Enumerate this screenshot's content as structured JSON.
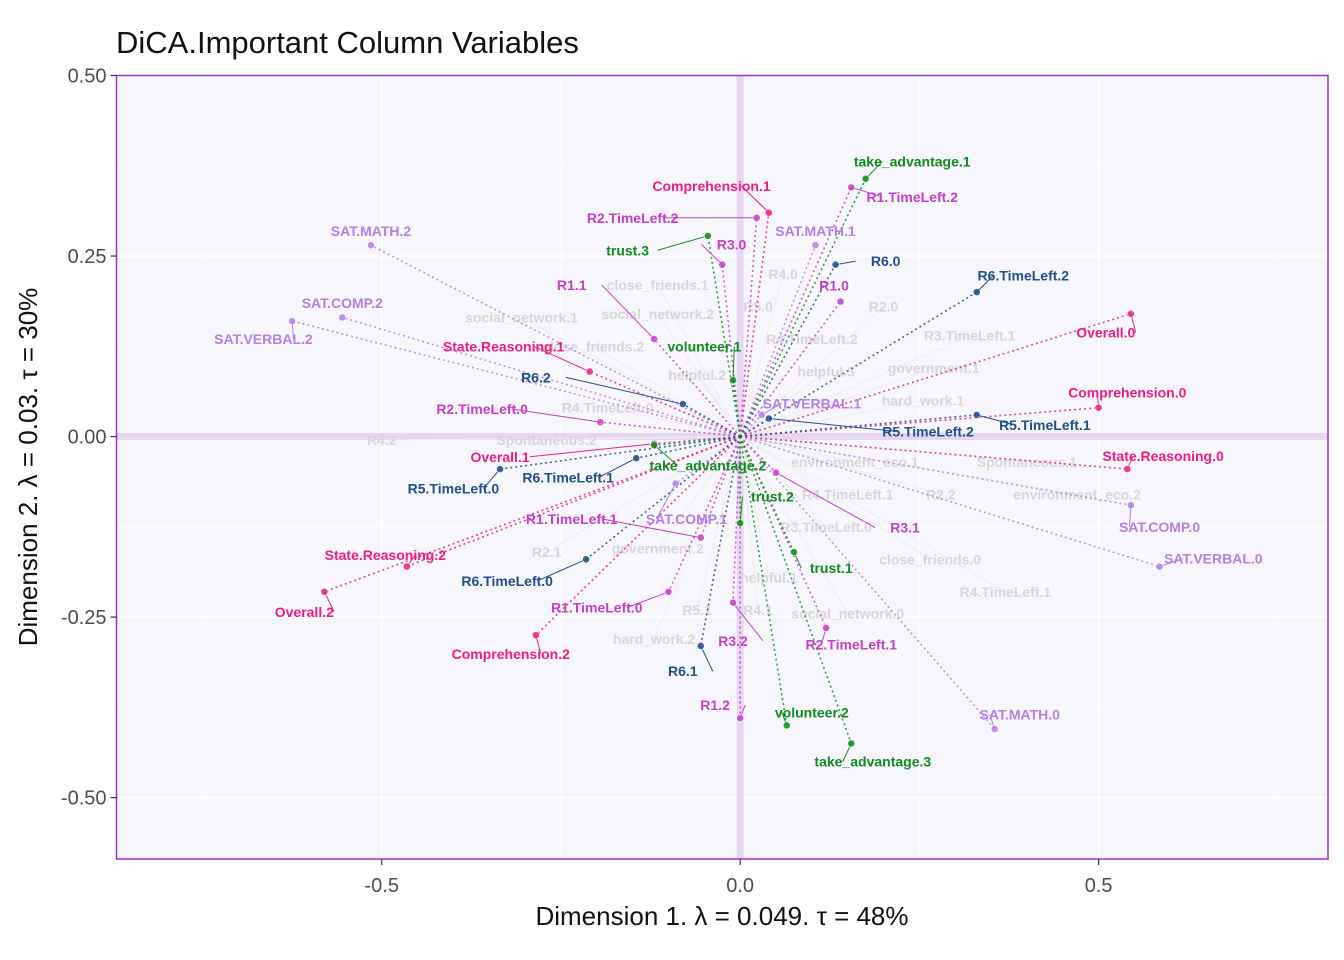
{
  "chart_data": {
    "type": "scatter",
    "title": "DiCA.Important Column Variables",
    "xlabel": "Dimension 1.   λ = 0.049.  τ = 48%",
    "ylabel": "Dimension 2.   λ = 0.03.  τ = 30%",
    "xlim": [
      -0.87,
      0.82
    ],
    "ylim": [
      -0.585,
      0.5
    ],
    "x_ticks": [
      -0.5,
      0.0,
      0.5
    ],
    "y_ticks": [
      0.5,
      0.25,
      0.0,
      -0.25,
      -0.5
    ],
    "x_tick_labels": [
      "-0.5",
      "0.0",
      "0.5"
    ],
    "y_tick_labels": [
      "0.50",
      "0.25",
      "0.00",
      "-0.25",
      "-0.50"
    ],
    "grid": true,
    "colors": {
      "panel_bg": "#f8f6fd",
      "panel_border": "#9932cc",
      "origin_lines": "#e6d6f2",
      "sat": "#b47fe7",
      "comprehension": "#ef1d82",
      "reasoning_time": "#c33fc8",
      "r6": "#1f4e89",
      "trust": "#0f8d1c",
      "grey": "#d6d6d6"
    },
    "groups": [
      {
        "name": "SAT",
        "color": "#b47fe7",
        "points": [
          {
            "label": "SAT.MATH.2",
            "x": -0.515,
            "y": 0.265,
            "lx": -0.515,
            "ly": 0.285
          },
          {
            "label": "SAT.COMP.2",
            "x": -0.555,
            "y": 0.165,
            "lx": -0.555,
            "ly": 0.185
          },
          {
            "label": "SAT.VERBAL.2",
            "x": -0.625,
            "y": 0.16,
            "lx": -0.665,
            "ly": 0.135
          },
          {
            "label": "SAT.MATH.1",
            "x": 0.105,
            "y": 0.265,
            "lx": 0.105,
            "ly": 0.285
          },
          {
            "label": "SAT.VERBAL.1",
            "x": 0.03,
            "y": 0.03,
            "lx": 0.1,
            "ly": 0.046
          },
          {
            "label": "SAT.COMP.1",
            "x": -0.09,
            "y": -0.065,
            "lx": -0.075,
            "ly": -0.114
          },
          {
            "label": "SAT.COMP.0",
            "x": 0.545,
            "y": -0.095,
            "lx": 0.585,
            "ly": -0.125
          },
          {
            "label": "SAT.VERBAL.0",
            "x": 0.585,
            "y": -0.18,
            "lx": 0.66,
            "ly": -0.169
          },
          {
            "label": "SAT.MATH.0",
            "x": 0.355,
            "y": -0.405,
            "lx": 0.39,
            "ly": -0.385
          }
        ]
      },
      {
        "name": "Comprehension",
        "color": "#ef1d82",
        "points": [
          {
            "label": "Comprehension.1",
            "x": 0.04,
            "y": 0.31,
            "lx": -0.04,
            "ly": 0.347
          },
          {
            "label": "Overall.0",
            "x": 0.545,
            "y": 0.17,
            "lx": 0.51,
            "ly": 0.144
          },
          {
            "label": "State.Reasoning.1",
            "x": -0.21,
            "y": 0.09,
            "lx": -0.33,
            "ly": 0.125
          },
          {
            "label": "Comprehension.0",
            "x": 0.5,
            "y": 0.04,
            "lx": 0.54,
            "ly": 0.061
          },
          {
            "label": "State.Reasoning.0",
            "x": 0.54,
            "y": -0.045,
            "lx": 0.59,
            "ly": -0.027
          },
          {
            "label": "Overall.1",
            "x": -0.12,
            "y": -0.01,
            "lx": -0.335,
            "ly": -0.028
          },
          {
            "label": "State.Reasoning.2",
            "x": -0.465,
            "y": -0.18,
            "lx": -0.495,
            "ly": -0.164
          },
          {
            "label": "Overall.2",
            "x": -0.58,
            "y": -0.215,
            "lx": -0.608,
            "ly": -0.243
          },
          {
            "label": "Comprehension.2",
            "x": -0.285,
            "y": -0.275,
            "lx": -0.32,
            "ly": -0.301
          }
        ]
      },
      {
        "name": "Reasoning time",
        "color": "#c33fc8",
        "points": [
          {
            "label": "R1.TimeLeft.2",
            "x": 0.155,
            "y": 0.345,
            "lx": 0.24,
            "ly": 0.332
          },
          {
            "label": "R2.TimeLeft.2",
            "x": 0.023,
            "y": 0.303,
            "lx": -0.15,
            "ly": 0.303
          },
          {
            "label": "R3.0",
            "x": -0.025,
            "y": 0.238,
            "lx": -0.012,
            "ly": 0.266
          },
          {
            "label": "R1.0",
            "x": 0.14,
            "y": 0.187,
            "lx": 0.131,
            "ly": 0.209
          },
          {
            "label": "R1.1",
            "x": -0.12,
            "y": 0.135,
            "lx": -0.235,
            "ly": 0.21
          },
          {
            "label": "R2.TimeLeft.0",
            "x": -0.195,
            "y": 0.02,
            "lx": -0.36,
            "ly": 0.038
          },
          {
            "label": "R3.1",
            "x": 0.05,
            "y": -0.05,
            "lx": 0.23,
            "ly": -0.126
          },
          {
            "label": "R1.TimeLeft.1",
            "x": -0.055,
            "y": -0.14,
            "lx": -0.235,
            "ly": -0.114
          },
          {
            "label": "R1.TimeLeft.0",
            "x": -0.1,
            "y": -0.215,
            "lx": -0.2,
            "ly": -0.237
          },
          {
            "label": "R3.2",
            "x": -0.01,
            "y": -0.23,
            "lx": -0.01,
            "ly": -0.283
          },
          {
            "label": "R2.TimeLeft.1",
            "x": 0.12,
            "y": -0.265,
            "lx": 0.155,
            "ly": -0.288
          },
          {
            "label": "R1.2",
            "x": 0,
            "y": -0.39,
            "lx": -0.035,
            "ly": -0.372
          }
        ]
      },
      {
        "name": "R6",
        "color": "#1f4e89",
        "points": [
          {
            "label": "R6.0",
            "x": 0.133,
            "y": 0.238,
            "lx": 0.203,
            "ly": 0.243
          },
          {
            "label": "R6.TimeLeft.2",
            "x": 0.33,
            "y": 0.2,
            "lx": 0.395,
            "ly": 0.223
          },
          {
            "label": "R6.2",
            "x": -0.08,
            "y": 0.045,
            "lx": -0.285,
            "ly": 0.082
          },
          {
            "label": "R5.TimeLeft.1",
            "x": 0.33,
            "y": 0.03,
            "lx": 0.425,
            "ly": 0.016
          },
          {
            "label": "R5.TimeLeft.2",
            "x": 0.04,
            "y": 0.025,
            "lx": 0.262,
            "ly": 0.007
          },
          {
            "label": "R6.TimeLeft.1",
            "x": -0.145,
            "y": -0.03,
            "lx": -0.24,
            "ly": -0.057
          },
          {
            "label": "R5.TimeLeft.0",
            "x": -0.335,
            "y": -0.045,
            "lx": -0.4,
            "ly": -0.072
          },
          {
            "label": "R6.TimeLeft.0",
            "x": -0.215,
            "y": -0.17,
            "lx": -0.325,
            "ly": -0.2
          },
          {
            "label": "R6.1",
            "x": -0.055,
            "y": -0.29,
            "lx": -0.08,
            "ly": -0.325
          }
        ]
      },
      {
        "name": "Trust",
        "color": "#0f8d1c",
        "points": [
          {
            "label": "take_advantage.1",
            "x": 0.175,
            "y": 0.357,
            "lx": 0.24,
            "ly": 0.381
          },
          {
            "label": "trust.3",
            "x": -0.045,
            "y": 0.278,
            "lx": -0.157,
            "ly": 0.258
          },
          {
            "label": "volunteer.1",
            "x": -0.01,
            "y": 0.078,
            "lx": -0.05,
            "ly": 0.125
          },
          {
            "label": "take_advantage.2",
            "x": -0.12,
            "y": -0.012,
            "lx": -0.045,
            "ly": -0.04
          },
          {
            "label": "trust.2",
            "x": 0,
            "y": -0.12,
            "lx": 0.045,
            "ly": -0.083
          },
          {
            "label": "trust.1",
            "x": 0.075,
            "y": -0.16,
            "lx": 0.127,
            "ly": -0.182
          },
          {
            "label": "volunteer.2",
            "x": 0.065,
            "y": -0.4,
            "lx": 0.1,
            "ly": -0.382
          },
          {
            "label": "take_advantage.3",
            "x": 0.155,
            "y": -0.425,
            "lx": 0.185,
            "ly": -0.45
          }
        ]
      }
    ],
    "background_labels": [
      {
        "label": "close_friends.1",
        "x": -0.115,
        "y": 0.21
      },
      {
        "label": "social_network.2",
        "x": -0.115,
        "y": 0.17
      },
      {
        "label": "social_network.1",
        "x": -0.305,
        "y": 0.165
      },
      {
        "label": "close_friends.2",
        "x": -0.205,
        "y": 0.125
      },
      {
        "label": "helpful.2",
        "x": -0.06,
        "y": 0.085
      },
      {
        "label": "R4.TimeLeft.0",
        "x": -0.185,
        "y": 0.04
      },
      {
        "label": "R4.2",
        "x": -0.5,
        "y": -0.005
      },
      {
        "label": "Spontaneous.2",
        "x": -0.27,
        "y": -0.005
      },
      {
        "label": "R4.0",
        "x": 0.06,
        "y": 0.225
      },
      {
        "label": "R5.0",
        "x": 0.025,
        "y": 0.18
      },
      {
        "label": "R2.0",
        "x": 0.2,
        "y": 0.18
      },
      {
        "label": "R4.TimeLeft.2",
        "x": 0.1,
        "y": 0.135
      },
      {
        "label": "R3.TimeLeft.1",
        "x": 0.32,
        "y": 0.14
      },
      {
        "label": "government.1",
        "x": 0.27,
        "y": 0.095
      },
      {
        "label": "helpful.3",
        "x": 0.12,
        "y": 0.09
      },
      {
        "label": "hard_work.1",
        "x": 0.255,
        "y": 0.05
      },
      {
        "label": "environment_eco.1",
        "x": 0.16,
        "y": -0.035
      },
      {
        "label": "Spontaneous.1",
        "x": 0.4,
        "y": -0.035
      },
      {
        "label": "R4.TimeLeft.1",
        "x": 0.15,
        "y": -0.08
      },
      {
        "label": "R2.2",
        "x": 0.28,
        "y": -0.08
      },
      {
        "label": "environment_eco.2",
        "x": 0.47,
        "y": -0.08
      },
      {
        "label": "R3.TimeLeft.0",
        "x": 0.12,
        "y": -0.125
      },
      {
        "label": "close_friends.0",
        "x": 0.265,
        "y": -0.17
      },
      {
        "label": "R4.TimeLeft.1",
        "x": 0.37,
        "y": -0.215
      },
      {
        "label": "government.2",
        "x": -0.115,
        "y": -0.155
      },
      {
        "label": "R2.1",
        "x": -0.27,
        "y": -0.16
      },
      {
        "label": "helpful.1",
        "x": 0.04,
        "y": -0.195
      },
      {
        "label": "R5.1",
        "x": -0.06,
        "y": -0.24
      },
      {
        "label": "R4.1",
        "x": 0.025,
        "y": -0.24
      },
      {
        "label": "social_network.0",
        "x": 0.15,
        "y": -0.245
      },
      {
        "label": "hard_work.2",
        "x": -0.12,
        "y": -0.28
      }
    ]
  }
}
